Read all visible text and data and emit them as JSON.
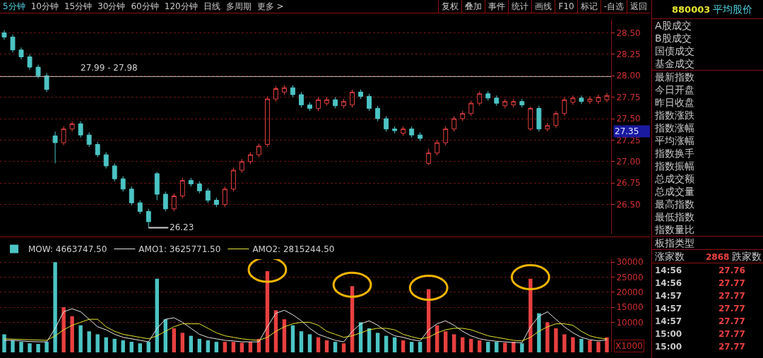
{
  "chart_data": [
    {
      "type": "other",
      "annotations": [
        "5分钟",
        "10分钟",
        "15分钟",
        "30分钟",
        "60分钟",
        "120分钟",
        "日线",
        "多周期",
        "更多 >",
        "复权",
        "叠加",
        "事件",
        "统计",
        "画线",
        "F10",
        "标记",
        "-自选",
        "返回"
      ]
    },
    {
      "type": "candlestick",
      "categories": [
        null,
        null,
        null,
        null,
        null,
        null,
        null,
        null,
        null,
        null,
        null,
        null,
        null,
        null,
        null,
        null,
        null,
        null,
        null,
        null,
        null,
        null,
        null,
        null,
        null,
        null,
        null,
        null,
        null,
        null,
        null,
        null,
        null,
        null,
        null,
        null,
        null,
        null,
        null,
        null,
        null,
        null,
        null,
        null,
        null,
        null,
        null,
        null,
        null,
        null,
        null,
        null,
        null,
        null,
        null,
        null,
        null,
        null,
        null,
        null,
        null,
        null,
        null,
        null,
        null,
        null,
        null,
        null,
        null,
        null,
        null,
        null
      ],
      "ohlc": [
        [
          28.5,
          28.53,
          28.42,
          28.45
        ],
        [
          28.45,
          28.48,
          28.27,
          28.3
        ],
        [
          28.3,
          28.33,
          28.19,
          28.22
        ],
        [
          28.22,
          28.25,
          28.07,
          28.1
        ],
        [
          28.1,
          28.13,
          27.97,
          28.0
        ],
        [
          28.0,
          28.03,
          27.81,
          27.84
        ],
        [
          27.3,
          27.35,
          26.98,
          27.22
        ],
        [
          27.22,
          27.41,
          27.19,
          27.38
        ],
        [
          27.38,
          27.47,
          27.35,
          27.44
        ],
        [
          27.44,
          27.47,
          27.28,
          27.31
        ],
        [
          27.31,
          27.34,
          27.17,
          27.2
        ],
        [
          27.2,
          27.23,
          27.05,
          27.08
        ],
        [
          27.08,
          27.11,
          26.92,
          26.95
        ],
        [
          26.95,
          26.98,
          26.77,
          26.8
        ],
        [
          26.8,
          26.83,
          26.65,
          26.68
        ],
        [
          26.68,
          26.71,
          26.49,
          26.52
        ],
        [
          26.52,
          26.55,
          26.39,
          26.42
        ],
        [
          26.42,
          26.45,
          26.23,
          26.3
        ],
        [
          26.86,
          26.88,
          26.55,
          26.62
        ],
        [
          26.62,
          26.65,
          26.42,
          26.45
        ],
        [
          26.45,
          26.63,
          26.42,
          26.6
        ],
        [
          26.6,
          26.81,
          26.57,
          26.78
        ],
        [
          26.78,
          26.81,
          26.71,
          26.74
        ],
        [
          26.74,
          26.77,
          26.63,
          26.66
        ],
        [
          26.66,
          26.69,
          26.52,
          26.55
        ],
        [
          26.55,
          26.58,
          26.47,
          26.5
        ],
        [
          26.5,
          26.71,
          26.47,
          26.68
        ],
        [
          26.68,
          26.93,
          26.65,
          26.9
        ],
        [
          26.9,
          27.03,
          26.87,
          27.0
        ],
        [
          27.0,
          27.11,
          26.97,
          27.08
        ],
        [
          27.08,
          27.21,
          27.05,
          27.18
        ],
        [
          27.2,
          27.76,
          27.17,
          27.73
        ],
        [
          27.73,
          27.88,
          27.7,
          27.85
        ],
        [
          27.81,
          27.89,
          27.78,
          27.86
        ],
        [
          27.86,
          27.89,
          27.75,
          27.78
        ],
        [
          27.78,
          27.81,
          27.63,
          27.66
        ],
        [
          27.66,
          27.69,
          27.59,
          27.62
        ],
        [
          27.62,
          27.75,
          27.59,
          27.72
        ],
        [
          27.68,
          27.75,
          27.65,
          27.72
        ],
        [
          27.72,
          27.75,
          27.62,
          27.65
        ],
        [
          27.65,
          27.73,
          27.62,
          27.7
        ],
        [
          27.66,
          27.84,
          27.63,
          27.81
        ],
        [
          27.81,
          27.84,
          27.73,
          27.76
        ],
        [
          27.76,
          27.79,
          27.59,
          27.62
        ],
        [
          27.62,
          27.65,
          27.47,
          27.5
        ],
        [
          27.5,
          27.53,
          27.35,
          27.38
        ],
        [
          27.38,
          27.41,
          27.33,
          27.36
        ],
        [
          27.33,
          27.41,
          27.3,
          27.38
        ],
        [
          27.38,
          27.41,
          27.28,
          27.31
        ],
        [
          27.31,
          27.34,
          27.24,
          27.27
        ],
        [
          26.98,
          27.15,
          26.96,
          27.1
        ],
        [
          27.1,
          27.25,
          27.07,
          27.22
        ],
        [
          27.22,
          27.41,
          27.19,
          27.38
        ],
        [
          27.38,
          27.53,
          27.35,
          27.5
        ],
        [
          27.5,
          27.59,
          27.47,
          27.56
        ],
        [
          27.56,
          27.71,
          27.53,
          27.68
        ],
        [
          27.68,
          27.82,
          27.65,
          27.79
        ],
        [
          27.79,
          27.82,
          27.71,
          27.74
        ],
        [
          27.74,
          27.77,
          27.65,
          27.68
        ],
        [
          27.65,
          27.73,
          27.62,
          27.7
        ],
        [
          27.66,
          27.73,
          27.63,
          27.7
        ],
        [
          27.7,
          27.73,
          27.63,
          27.66
        ],
        [
          27.38,
          27.64,
          27.36,
          27.62
        ],
        [
          27.62,
          27.65,
          27.35,
          27.38
        ],
        [
          27.38,
          27.45,
          27.35,
          27.42
        ],
        [
          27.42,
          27.59,
          27.39,
          27.56
        ],
        [
          27.56,
          27.75,
          27.53,
          27.72
        ],
        [
          27.69,
          27.77,
          27.66,
          27.74
        ],
        [
          27.74,
          27.77,
          27.67,
          27.7
        ],
        [
          27.7,
          27.76,
          27.67,
          27.73
        ],
        [
          27.7,
          27.78,
          27.67,
          27.75
        ],
        [
          27.72,
          27.8,
          27.69,
          27.77
        ]
      ],
      "ylim": [
        26.16,
        28.66
      ],
      "yticks": [
        {
          "value": 26.5,
          "label": "26.50"
        },
        26.75,
        {
          "value": 27,
          "label": "27.00"
        },
        27.25,
        {
          "value": 27.5,
          "label": "27.50"
        },
        27.75,
        {
          "value": 28,
          "label": "28.00"
        },
        28.25,
        {
          "value": 28.5,
          "label": "28.50"
        }
      ],
      "grid": "y",
      "tick_labels": "y",
      "ref_lines": [
        {
          "axis": "y",
          "value": 27.99,
          "label": "27.99 - 27.98",
          "color": "#b4b4b4"
        }
      ],
      "annotations": [
        "26.23",
        "27.35"
      ]
    },
    {
      "type": "bar",
      "categories": [
        null,
        null,
        null,
        null,
        null,
        null,
        null,
        null,
        null,
        null,
        null,
        null,
        null,
        null,
        null,
        null,
        null,
        null,
        null,
        null,
        null,
        null,
        null,
        null,
        null,
        null,
        null,
        null,
        null,
        null,
        null,
        null,
        null,
        null,
        null,
        null,
        null,
        null,
        null,
        null,
        null,
        null,
        null,
        null,
        null,
        null,
        null,
        null,
        null,
        null,
        null,
        null,
        null,
        null,
        null,
        null,
        null,
        null,
        null,
        null,
        null,
        null,
        null,
        null,
        null,
        null,
        null,
        null,
        null,
        null,
        null,
        null
      ],
      "series": [
        {
          "name": "MOW: 4663747.50",
          "type": "bar",
          "colors": [
            "#4cc4c4",
            "#4cc4c4",
            "#4cc4c4",
            "#4cc4c4",
            "#4cc4c4",
            "#4cc4c4",
            "#4cc4c4",
            "#e84040",
            "#e84040",
            "#4cc4c4",
            "#4cc4c4",
            "#4cc4c4",
            "#4cc4c4",
            "#4cc4c4",
            "#4cc4c4",
            "#4cc4c4",
            "#4cc4c4",
            "#4cc4c4",
            "#4cc4c4",
            "#4cc4c4",
            "#e84040",
            "#e84040",
            "#4cc4c4",
            "#4cc4c4",
            "#4cc4c4",
            "#4cc4c4",
            "#e84040",
            "#e84040",
            "#e84040",
            "#e84040",
            "#e84040",
            "#e84040",
            "#e84040",
            "#e84040",
            "#4cc4c4",
            "#4cc4c4",
            "#4cc4c4",
            "#e84040",
            "#e84040",
            "#4cc4c4",
            "#e84040",
            "#e84040",
            "#4cc4c4",
            "#4cc4c4",
            "#4cc4c4",
            "#4cc4c4",
            "#4cc4c4",
            "#e84040",
            "#4cc4c4",
            "#4cc4c4",
            "#e84040",
            "#e84040",
            "#e84040",
            "#e84040",
            "#e84040",
            "#e84040",
            "#e84040",
            "#4cc4c4",
            "#4cc4c4",
            "#e84040",
            "#e84040",
            "#4cc4c4",
            "#e84040",
            "#4cc4c4",
            "#e84040",
            "#e84040",
            "#e84040",
            "#e84040",
            "#4cc4c4",
            "#e84040",
            "#e84040",
            "#e84040"
          ],
          "values": [
            6000,
            4000,
            3500,
            3000,
            2800,
            3500,
            30000,
            15000,
            12000,
            9000,
            7000,
            6000,
            5000,
            4500,
            4000,
            3500,
            3000,
            3500,
            24500,
            11000,
            8000,
            6500,
            5500,
            4500,
            4000,
            3500,
            3500,
            3500,
            3200,
            3500,
            4500,
            27000,
            14000,
            11000,
            9000,
            7000,
            6000,
            5000,
            4000,
            3500,
            3000,
            22000,
            10000,
            8000,
            6500,
            5500,
            5000,
            4000,
            3500,
            3500,
            21000,
            9000,
            7000,
            6000,
            5000,
            4500,
            4000,
            3500,
            3500,
            3200,
            3500,
            3000,
            24500,
            13000,
            10000,
            8000,
            6000,
            5000,
            4500,
            4000,
            3500,
            5000
          ]
        },
        {
          "name": "AMO1: 3625771.50",
          "type": "line",
          "color": "#e6e6e6",
          "values": [
            4000,
            4000,
            3800,
            3600,
            3500,
            3500,
            8000,
            13500,
            14500,
            13500,
            11000,
            8500,
            7500,
            6000,
            5000,
            4500,
            4000,
            3500,
            8000,
            11000,
            11500,
            10000,
            8000,
            6000,
            5000,
            4500,
            4000,
            3800,
            3500,
            3500,
            3500,
            8500,
            13000,
            14000,
            12500,
            10500,
            8000,
            6000,
            5000,
            4000,
            3500,
            7000,
            9500,
            10500,
            9000,
            7000,
            5500,
            5000,
            4200,
            3800,
            7500,
            9500,
            10500,
            9000,
            7000,
            5500,
            4500,
            4000,
            3700,
            3500,
            3300,
            3200,
            8500,
            12000,
            13500,
            11000,
            8500,
            6500,
            5000,
            4200,
            3800,
            4200
          ]
        },
        {
          "name": "AMO2: 2815244.50",
          "type": "line",
          "color": "#e6e632",
          "values": [
            4500,
            4400,
            4300,
            4200,
            4100,
            4000,
            5500,
            7500,
            9000,
            10000,
            11000,
            11000,
            8500,
            7000,
            6000,
            5500,
            5000,
            4500,
            5500,
            7000,
            8500,
            9500,
            9500,
            9500,
            8000,
            6500,
            5500,
            5000,
            4500,
            4200,
            4000,
            5000,
            7000,
            8500,
            9500,
            10000,
            10000,
            9000,
            7000,
            6000,
            5000,
            5500,
            6500,
            7500,
            8000,
            8000,
            7500,
            6000,
            5200,
            4500,
            5000,
            6500,
            7500,
            8000,
            8000,
            7500,
            6500,
            5500,
            5000,
            4500,
            4000,
            3800,
            5000,
            7000,
            8500,
            9500,
            9500,
            9000,
            7000,
            5500,
            4800,
            4500
          ]
        }
      ],
      "ylim": [
        0,
        31000
      ],
      "yticks": [
        10000,
        15000,
        20000,
        25000,
        30000
      ],
      "grid": "y",
      "tick_labels": "y",
      "legend": "top left",
      "marker": "none",
      "annotations": [
        "X1000"
      ]
    },
    {
      "type": "other",
      "annotations": [
        "880003",
        "平均股价",
        "A股成交",
        "B股成交",
        "国债成交",
        "基金成交",
        "最新指数",
        "今日开盘",
        "昨日收盘",
        "指数涨跌",
        "指数涨幅",
        "平均涨幅",
        "指数换手",
        "指数振幅",
        "总成交额",
        "总成交量",
        "最高指数",
        "最低指数",
        "指数量比",
        "板指类型",
        "涨家数",
        "2868",
        "跌家数",
        "14:56",
        "27.76",
        "14:56",
        "27.77",
        "14:57",
        "27.77",
        "14:57",
        "27.77",
        "14:57",
        "27.77",
        "15:00",
        "27.77",
        "15:00",
        "27.77"
      ]
    }
  ]
}
